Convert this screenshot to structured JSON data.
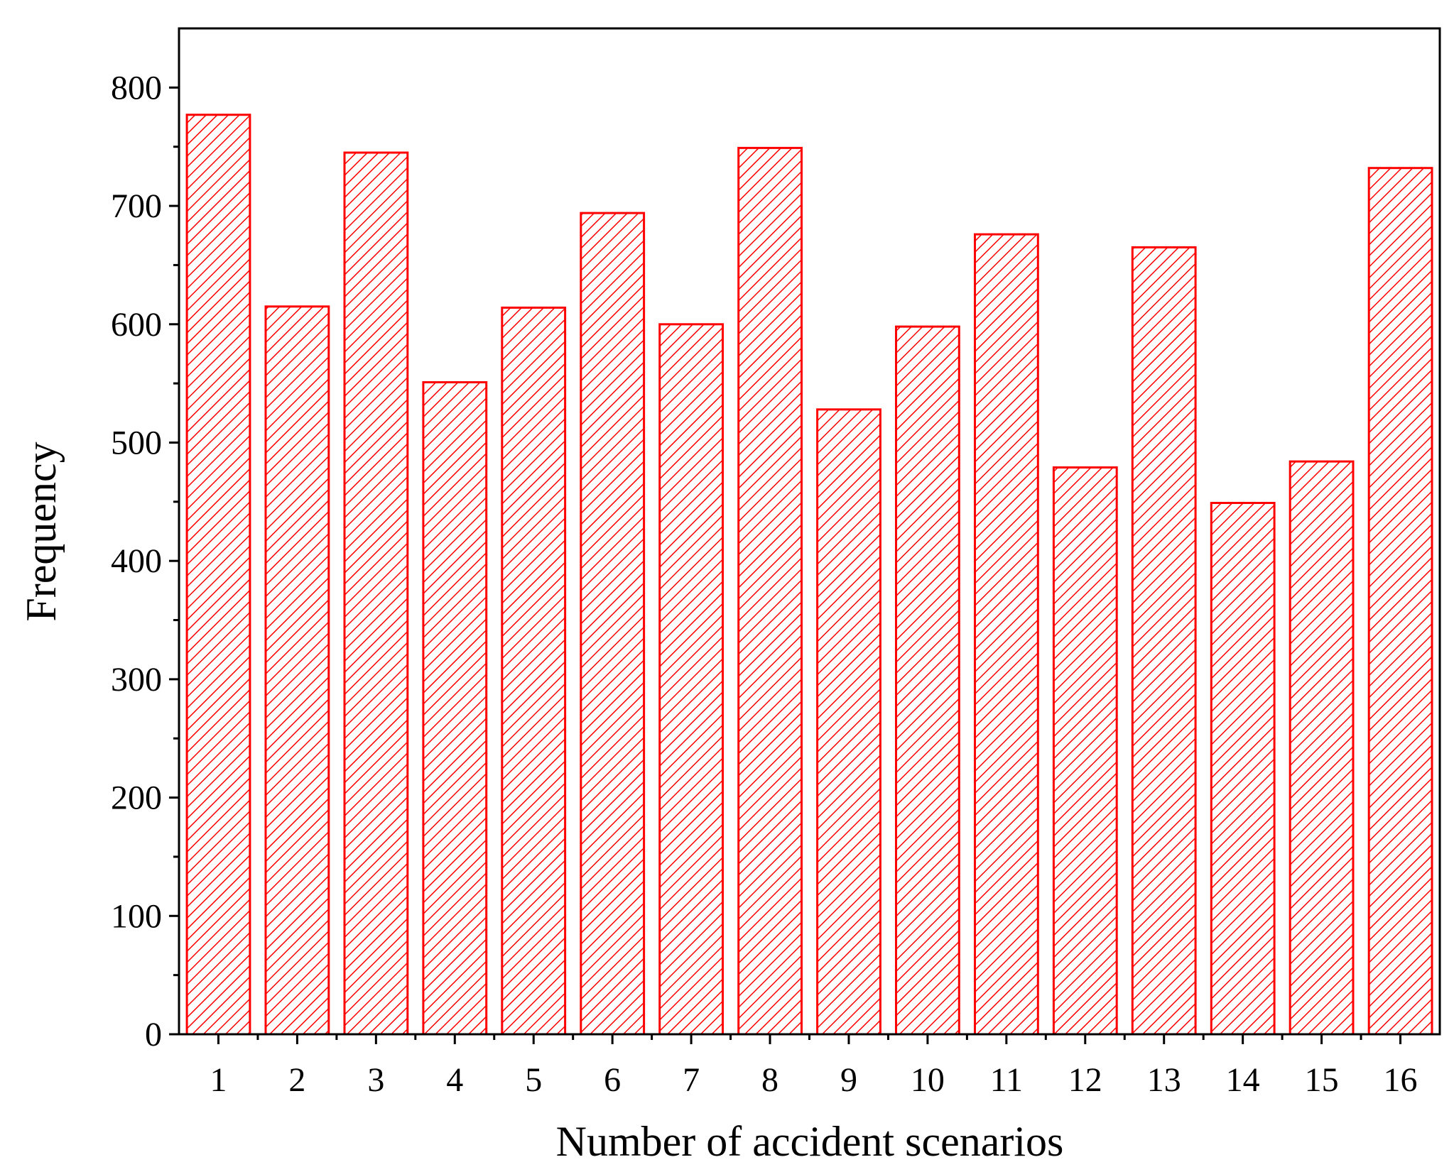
{
  "chart_data": {
    "type": "bar",
    "xlabel": "Number of accident scenarios",
    "ylabel": "Frequency",
    "categories": [
      "1",
      "2",
      "3",
      "4",
      "5",
      "6",
      "7",
      "8",
      "9",
      "10",
      "11",
      "12",
      "13",
      "14",
      "15",
      "16"
    ],
    "values": [
      777,
      615,
      745,
      551,
      614,
      694,
      600,
      749,
      528,
      598,
      676,
      479,
      665,
      449,
      484,
      732
    ],
    "ylim": [
      0,
      850
    ],
    "yticks": [
      0,
      100,
      200,
      300,
      400,
      500,
      600,
      700,
      800
    ],
    "ytick_labels": [
      "0",
      "100",
      "200",
      "300",
      "400",
      "500",
      "600",
      "700",
      "800"
    ],
    "grid": false,
    "bar_style": "hatched",
    "colors": {
      "bar_stroke": "#ff0000",
      "hatch": "#ff0000",
      "axis": "#000000"
    }
  }
}
